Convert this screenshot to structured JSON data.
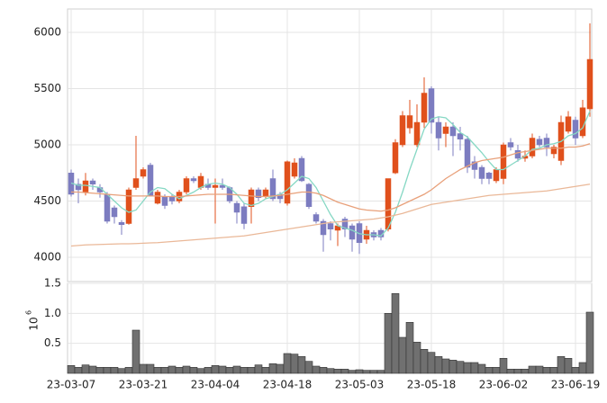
{
  "chart_data": [
    {
      "type": "candlestick",
      "categories": [
        "23-03-07",
        null,
        null,
        null,
        null,
        null,
        null,
        null,
        null,
        null,
        "23-03-21",
        null,
        null,
        null,
        null,
        null,
        null,
        null,
        null,
        null,
        "23-04-04",
        null,
        null,
        null,
        null,
        null,
        null,
        null,
        null,
        null,
        "23-04-18",
        null,
        null,
        null,
        null,
        null,
        null,
        null,
        null,
        null,
        "23-05-03",
        null,
        null,
        null,
        null,
        null,
        null,
        null,
        null,
        null,
        "23-05-18",
        null,
        null,
        null,
        null,
        null,
        null,
        null,
        null,
        null,
        "23-06-02",
        null,
        null,
        null,
        null,
        null,
        null,
        null,
        null,
        null,
        "23-06-19",
        null,
        null
      ],
      "open": [
        4750,
        4650,
        4580,
        4680,
        4620,
        4560,
        4440,
        4310,
        4300,
        4620,
        4720,
        4820,
        4480,
        4540,
        4540,
        4500,
        4580,
        4700,
        4620,
        4650,
        4620,
        4640,
        4620,
        4480,
        4450,
        4450,
        4600,
        4540,
        4700,
        4560,
        4480,
        4720,
        4880,
        4650,
        4380,
        4320,
        4300,
        4240,
        4340,
        4280,
        4300,
        4160,
        4220,
        4240,
        4250,
        4750,
        5000,
        5150,
        5000,
        5200,
        5500,
        5200,
        5100,
        5160,
        5100,
        5050,
        4850,
        4800,
        4750,
        4680,
        4700,
        5020,
        4950,
        4880,
        4900,
        5050,
        5060,
        4920,
        4860,
        5120,
        5220,
        5080,
        5320
      ],
      "high": [
        4780,
        4700,
        4750,
        4700,
        4650,
        4580,
        4460,
        4330,
        4620,
        5080,
        4800,
        4840,
        4600,
        4560,
        4560,
        4600,
        4720,
        4720,
        4750,
        4700,
        4700,
        4700,
        4630,
        4500,
        4480,
        4620,
        4620,
        4620,
        4780,
        4580,
        4860,
        4880,
        4900,
        4660,
        4400,
        4340,
        4320,
        4300,
        4360,
        4300,
        4320,
        4280,
        4240,
        4260,
        4700,
        5050,
        5300,
        5400,
        5360,
        5600,
        5520,
        5250,
        5200,
        5200,
        5160,
        5080,
        4900,
        4820,
        4760,
        4800,
        5020,
        5060,
        5000,
        4950,
        5100,
        5080,
        5100,
        5000,
        5260,
        5300,
        5250,
        5400,
        6080
      ],
      "low": [
        4540,
        4480,
        4550,
        4600,
        4530,
        4300,
        4300,
        4200,
        4290,
        4600,
        4700,
        4540,
        4470,
        4430,
        4470,
        4480,
        4560,
        4660,
        4600,
        4600,
        4300,
        4600,
        4480,
        4300,
        4250,
        4300,
        4500,
        4520,
        4500,
        4480,
        4460,
        4700,
        4670,
        4430,
        4300,
        4050,
        4150,
        4100,
        4180,
        4050,
        4030,
        4120,
        4150,
        4150,
        4230,
        4740,
        4980,
        5100,
        4980,
        5150,
        5100,
        4950,
        4980,
        4900,
        4950,
        4750,
        4700,
        4650,
        4650,
        4660,
        4650,
        4950,
        4850,
        4850,
        4880,
        4980,
        4900,
        4880,
        4820,
        5100,
        5000,
        5060,
        5250
      ],
      "close": [
        4560,
        4600,
        4680,
        4650,
        4580,
        4320,
        4360,
        4290,
        4600,
        4700,
        4780,
        4550,
        4580,
        4460,
        4500,
        4580,
        4700,
        4680,
        4720,
        4620,
        4640,
        4620,
        4500,
        4400,
        4300,
        4600,
        4530,
        4600,
        4520,
        4520,
        4850,
        4840,
        4680,
        4450,
        4320,
        4200,
        4250,
        4280,
        4250,
        4160,
        4130,
        4240,
        4180,
        4180,
        4700,
        5020,
        5260,
        5260,
        5200,
        5460,
        5200,
        5060,
        5160,
        5080,
        5050,
        4800,
        4780,
        4700,
        4700,
        4780,
        5000,
        4980,
        4880,
        4900,
        5060,
        5000,
        4980,
        4980,
        5200,
        5250,
        5060,
        5330,
        5760
      ],
      "up_color": "#e0501c",
      "down_color": "#7c7cc0",
      "series": [
        {
          "color": "#86d8c4",
          "values": [
            4660,
            4640,
            4640,
            4630,
            4620,
            4560,
            4500,
            4440,
            4400,
            4420,
            4500,
            4580,
            4620,
            4610,
            4560,
            4520,
            4550,
            4580,
            4620,
            4650,
            4660,
            4650,
            4620,
            4560,
            4480,
            4460,
            4480,
            4520,
            4540,
            4560,
            4600,
            4660,
            4720,
            4700,
            4620,
            4500,
            4380,
            4280,
            4260,
            4240,
            4210,
            4200,
            4200,
            4190,
            4260,
            4400,
            4580,
            4780,
            4960,
            5140,
            5230,
            5250,
            5240,
            5180,
            5110,
            5070,
            5000,
            4930,
            4850,
            4780,
            4780,
            4820,
            4860,
            4900,
            4960,
            4970,
            5000,
            5010,
            5030,
            5080,
            5100,
            5150,
            5300
          ]
        },
        {
          "color": "#e8a07a",
          "values": [
            4580,
            4580,
            4575,
            4570,
            4565,
            4560,
            4555,
            4550,
            4545,
            4545,
            4545,
            4545,
            4545,
            4540,
            4540,
            4540,
            4545,
            4550,
            4555,
            4560,
            4560,
            4560,
            4560,
            4555,
            4550,
            4545,
            4540,
            4540,
            4545,
            4550,
            4560,
            4570,
            4580,
            4580,
            4570,
            4550,
            4520,
            4490,
            4470,
            4450,
            4430,
            4420,
            4415,
            4410,
            4420,
            4440,
            4470,
            4500,
            4530,
            4560,
            4600,
            4650,
            4700,
            4740,
            4780,
            4810,
            4840,
            4860,
            4870,
            4880,
            4890,
            4910,
            4930,
            4940,
            4950,
            4960,
            4970,
            4970,
            4970,
            4980,
            4980,
            4990,
            5010
          ]
        },
        {
          "color": "#eab898",
          "values": [
            4100,
            4105,
            4110,
            4112,
            4114,
            4116,
            4118,
            4120,
            4120,
            4122,
            4125,
            4128,
            4130,
            4135,
            4140,
            4145,
            4150,
            4155,
            4160,
            4165,
            4170,
            4175,
            4180,
            4185,
            4190,
            4200,
            4210,
            4220,
            4230,
            4240,
            4250,
            4260,
            4270,
            4280,
            4290,
            4300,
            4310,
            4315,
            4320,
            4325,
            4330,
            4335,
            4340,
            4350,
            4360,
            4375,
            4390,
            4410,
            4430,
            4450,
            4470,
            4480,
            4490,
            4500,
            4510,
            4520,
            4530,
            4540,
            4550,
            4555,
            4560,
            4565,
            4570,
            4575,
            4580,
            4585,
            4590,
            4600,
            4610,
            4620,
            4630,
            4640,
            4650
          ]
        }
      ],
      "ylim": [
        3784,
        6208
      ],
      "yticks": [
        4000,
        4500,
        5000,
        5500,
        6000
      ],
      "grid": true
    },
    {
      "type": "bar",
      "values": [
        0.13,
        0.1,
        0.14,
        0.12,
        0.1,
        0.1,
        0.1,
        0.08,
        0.1,
        0.72,
        0.15,
        0.15,
        0.1,
        0.1,
        0.12,
        0.1,
        0.12,
        0.1,
        0.08,
        0.1,
        0.13,
        0.12,
        0.1,
        0.12,
        0.1,
        0.1,
        0.14,
        0.1,
        0.16,
        0.15,
        0.33,
        0.32,
        0.28,
        0.2,
        0.12,
        0.1,
        0.08,
        0.07,
        0.07,
        0.05,
        0.06,
        0.05,
        0.05,
        0.05,
        1.0,
        1.33,
        0.6,
        0.85,
        0.52,
        0.4,
        0.35,
        0.28,
        0.24,
        0.22,
        0.2,
        0.18,
        0.18,
        0.15,
        0.1,
        0.1,
        0.25,
        0.07,
        0.07,
        0.07,
        0.12,
        0.12,
        0.1,
        0.1,
        0.28,
        0.25,
        0.1,
        0.18,
        1.02
      ],
      "color": "#707070",
      "y_axis_multiplier": {
        "base": "10",
        "exponent": "6"
      },
      "ylim": [
        0,
        1.5
      ],
      "yticks": [
        0.5,
        {
          "value": 1,
          "label": "1.0"
        },
        1.5
      ],
      "grid": true
    }
  ]
}
